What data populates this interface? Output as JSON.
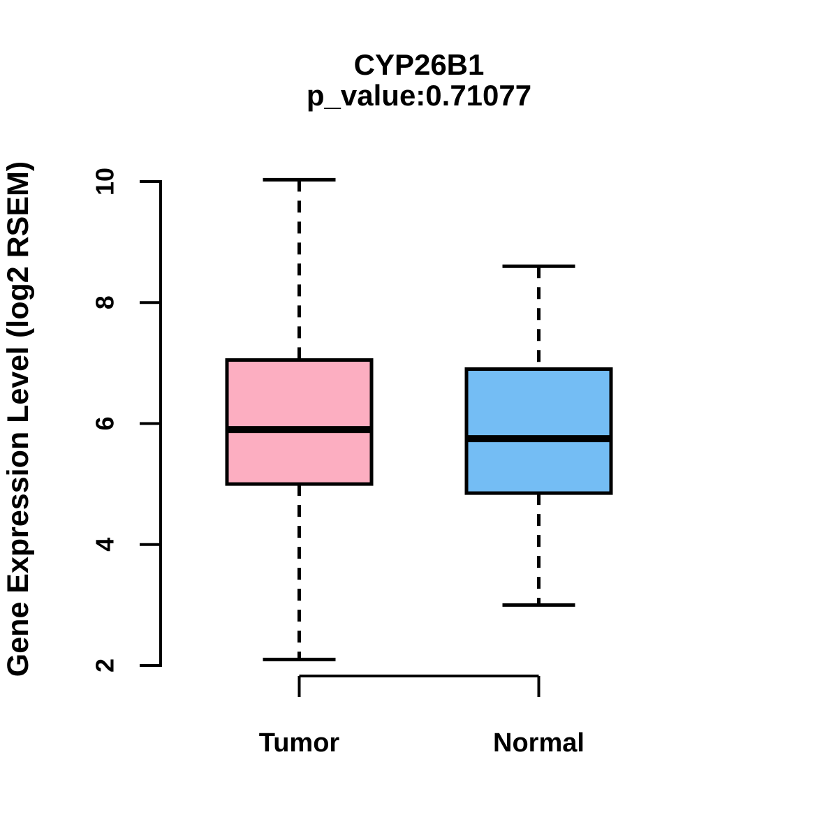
{
  "chart_data": {
    "type": "boxplot",
    "title": "CYP26B1",
    "subtitle": "p_value:0.71077",
    "ylabel": "Gene Expression Level (log2 RSEM)",
    "xlabel": "",
    "categories": [
      "Tumor",
      "Normal"
    ],
    "ylim": [
      2,
      10
    ],
    "yticks": [
      2,
      4,
      6,
      8,
      10
    ],
    "grid": false,
    "legend": "none",
    "background_color": "#FFFFFF",
    "stroke_color": "#000000",
    "series": [
      {
        "name": "Tumor",
        "fill_color": "#FCAEC1",
        "lower_whisker": 2.1,
        "q1": 5.0,
        "median": 5.9,
        "q3": 7.05,
        "upper_whisker": 10.03
      },
      {
        "name": "Normal",
        "fill_color": "#74BDF4",
        "lower_whisker": 3.0,
        "q1": 4.85,
        "median": 5.75,
        "q3": 6.9,
        "upper_whisker": 8.6
      }
    ]
  }
}
